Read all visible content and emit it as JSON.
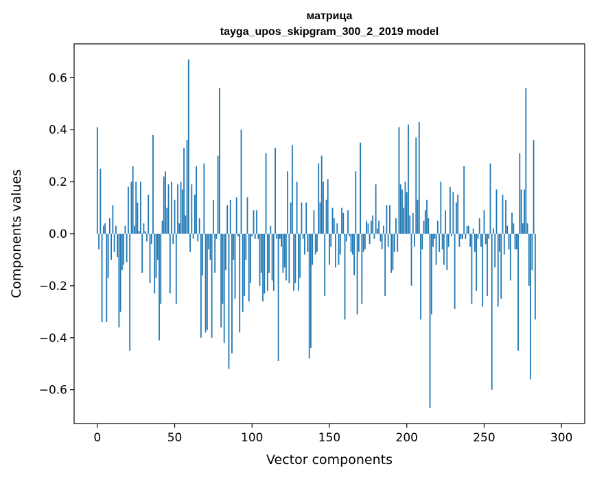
{
  "chart_data": {
    "type": "bar",
    "title": "матрица",
    "subtitle": "tayga_upos_skipgram_300_2_2019 model",
    "xlabel": "Vector components",
    "ylabel": "Components values",
    "xlim": [
      -15,
      315
    ],
    "ylim": [
      -0.73,
      0.73
    ],
    "xticks": [
      0,
      50,
      100,
      150,
      200,
      250,
      300
    ],
    "xtick_labels": [
      "0",
      "50",
      "100",
      "150",
      "200",
      "250",
      "300"
    ],
    "yticks": [
      -0.6,
      -0.4,
      -0.2,
      0.0,
      0.2,
      0.4,
      0.6
    ],
    "ytick_labels": [
      "−0.6",
      "−0.4",
      "−0.2",
      "0.0",
      "0.2",
      "0.4",
      "0.6"
    ],
    "grid": false,
    "bar_color": "#1f77b4",
    "x_start": 0,
    "values": [
      0.41,
      -0.06,
      0.25,
      -0.34,
      0.03,
      0.04,
      -0.34,
      -0.17,
      0.06,
      -0.1,
      0.11,
      -0.07,
      0.03,
      -0.09,
      -0.36,
      -0.3,
      -0.14,
      -0.12,
      0.03,
      -0.11,
      0.18,
      -0.45,
      0.2,
      0.26,
      0.03,
      0.2,
      0.12,
      0.01,
      0.2,
      -0.15,
      0.04,
      0.01,
      -0.03,
      0.15,
      -0.19,
      -0.04,
      0.38,
      -0.23,
      -0.17,
      -0.1,
      -0.41,
      -0.27,
      0.05,
      0.22,
      0.24,
      0.1,
      0.19,
      -0.23,
      0.2,
      -0.04,
      0.13,
      -0.27,
      0.19,
      0.04,
      0.2,
      0.17,
      0.33,
      0.07,
      0.36,
      0.67,
      -0.07,
      0.19,
      -0.02,
      0.15,
      0.26,
      -0.03,
      0.06,
      -0.4,
      -0.16,
      0.27,
      -0.38,
      -0.37,
      -0.06,
      -0.1,
      -0.4,
      0.13,
      -0.15,
      -0.02,
      0.3,
      0.56,
      -0.36,
      -0.27,
      -0.42,
      -0.14,
      0.11,
      -0.52,
      0.13,
      -0.46,
      -0.1,
      -0.25,
      0.14,
      -0.01,
      -0.38,
      0.4,
      -0.3,
      -0.24,
      -0.1,
      0.14,
      -0.26,
      -0.19,
      -0.01,
      0.09,
      -0.02,
      0.09,
      -0.02,
      -0.2,
      -0.15,
      -0.26,
      -0.23,
      0.31,
      -0.22,
      -0.15,
      0.03,
      -0.18,
      -0.22,
      0.33,
      -0.02,
      -0.49,
      -0.02,
      -0.05,
      -0.15,
      -0.13,
      -0.18,
      0.24,
      -0.19,
      0.12,
      0.34,
      -0.22,
      -0.19,
      0.2,
      -0.22,
      -0.17,
      0.12,
      -0.02,
      -0.08,
      0.12,
      -0.07,
      -0.48,
      -0.44,
      -0.12,
      0.09,
      -0.08,
      -0.07,
      0.27,
      0.12,
      0.3,
      0.2,
      -0.24,
      0.13,
      0.21,
      -0.12,
      -0.05,
      0.1,
      0.06,
      -0.13,
      0.04,
      -0.12,
      -0.08,
      0.1,
      0.08,
      -0.33,
      -0.03,
      0.09,
      -0.01,
      -0.07,
      -0.08,
      -0.16,
      0.24,
      -0.31,
      -0.07,
      0.35,
      -0.27,
      -0.07,
      -0.06,
      0.05,
      0.04,
      -0.04,
      0.05,
      0.07,
      -0.02,
      0.19,
      0.02,
      0.05,
      -0.03,
      -0.06,
      0.03,
      -0.24,
      0.11,
      -0.05,
      0.11,
      -0.15,
      -0.14,
      -0.07,
      0.06,
      -0.07,
      0.41,
      0.19,
      0.17,
      0.1,
      0.2,
      0.16,
      0.42,
      0.07,
      -0.2,
      0.08,
      -0.05,
      0.37,
      0.13,
      0.43,
      -0.33,
      -0.06,
      0.05,
      0.09,
      0.13,
      0.06,
      -0.67,
      -0.31,
      -0.05,
      -0.02,
      -0.12,
      0.05,
      -0.07,
      0.2,
      -0.06,
      -0.12,
      0.09,
      -0.14,
      -0.05,
      0.18,
      -0.01,
      0.16,
      -0.29,
      0.12,
      0.15,
      -0.05,
      -0.02,
      -0.02,
      0.26,
      -0.02,
      0.03,
      0.03,
      -0.05,
      -0.27,
      0.02,
      -0.07,
      -0.22,
      -0.02,
      0.06,
      -0.05,
      -0.28,
      0.09,
      -0.04,
      -0.24,
      -0.02,
      0.27,
      -0.6,
      0.02,
      -0.13,
      0.17,
      -0.28,
      -0.07,
      -0.25,
      0.15,
      -0.08,
      0.13,
      0.03,
      -0.06,
      -0.18,
      0.08,
      0.04,
      -0.06,
      -0.06,
      -0.45,
      0.31,
      0.17,
      0.04,
      0.17,
      0.56,
      0.04,
      -0.2,
      -0.56,
      -0.14,
      0.36,
      -0.33
    ]
  }
}
